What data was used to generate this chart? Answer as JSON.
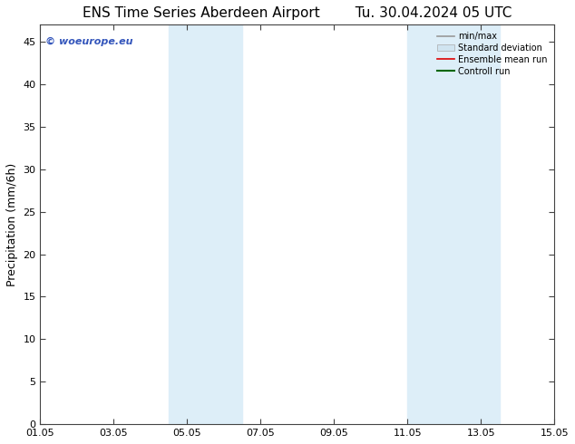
{
  "title_left": "ENS Time Series Aberdeen Airport",
  "title_right": "Tu. 30.04.2024 05 UTC",
  "ylabel": "Precipitation (mm/6h)",
  "ylim": [
    0,
    47
  ],
  "yticks": [
    0,
    5,
    10,
    15,
    20,
    25,
    30,
    35,
    40,
    45
  ],
  "xlim": [
    0,
    14
  ],
  "xtick_positions": [
    0,
    2,
    4,
    6,
    8,
    10,
    12,
    14
  ],
  "xtick_labels": [
    "01.05",
    "03.05",
    "05.05",
    "07.05",
    "09.05",
    "11.05",
    "13.05",
    "15.05"
  ],
  "shaded_bands": [
    {
      "x_start": 3.5,
      "x_end": 4.5,
      "color": "#ddeef8"
    },
    {
      "x_start": 4.5,
      "x_end": 5.5,
      "color": "#ddeef8"
    },
    {
      "x_start": 10.0,
      "x_end": 11.0,
      "color": "#ddeef8"
    },
    {
      "x_start": 11.0,
      "x_end": 12.5,
      "color": "#ddeef8"
    }
  ],
  "legend_entries": [
    {
      "label": "min/max",
      "type": "line",
      "color": "#999999",
      "lw": 1.2
    },
    {
      "label": "Standard deviation",
      "type": "patch",
      "color": "#d0e4f0"
    },
    {
      "label": "Ensemble mean run",
      "type": "line",
      "color": "#dd0000",
      "lw": 1.2
    },
    {
      "label": "Controll run",
      "type": "line",
      "color": "#006600",
      "lw": 1.5
    }
  ],
  "watermark": "© woeurope.eu",
  "watermark_color": "#3355bb",
  "background_color": "#ffffff",
  "plot_bg_color": "#ffffff",
  "spine_color": "#444444",
  "title_fontsize": 11,
  "axis_label_fontsize": 9,
  "tick_fontsize": 8,
  "legend_fontsize": 7
}
